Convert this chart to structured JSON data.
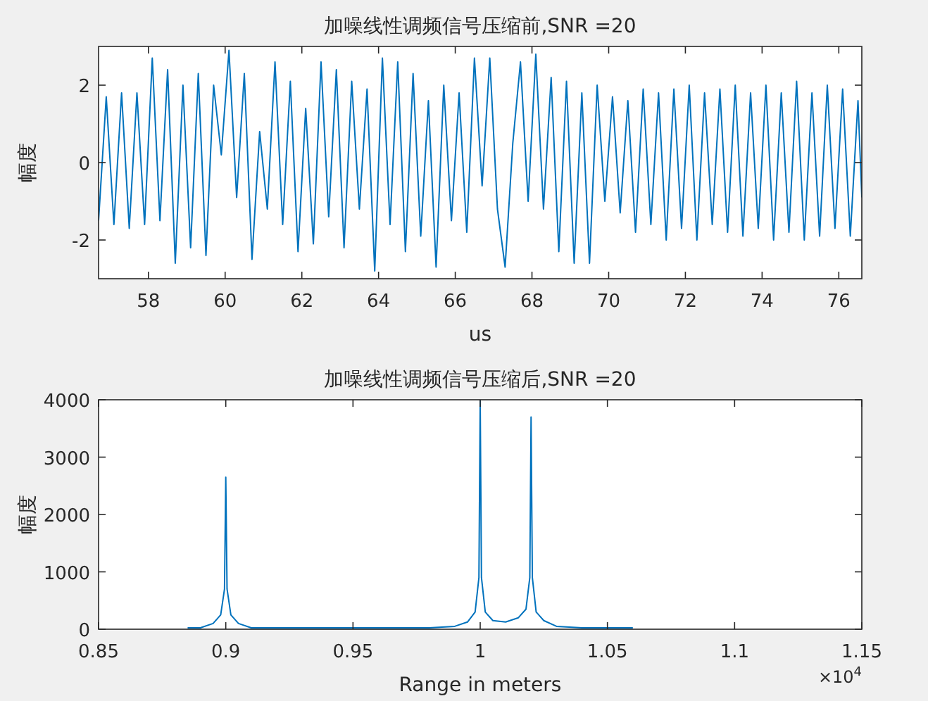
{
  "chart_data": [
    {
      "type": "line",
      "title": "加噪线性调频信号压缩前,SNR =20",
      "xlabel": "us",
      "ylabel": "幅度",
      "xlim": [
        56.7,
        76.6
      ],
      "xticks": [
        58,
        60,
        62,
        64,
        66,
        68,
        70,
        72,
        74,
        76
      ],
      "ylim": [
        -3,
        3
      ],
      "yticks": [
        -2,
        0,
        2
      ],
      "series": [
        {
          "color": "#0072bd",
          "x": [
            56.7,
            56.9,
            57.1,
            57.3,
            57.5,
            57.7,
            57.9,
            58.1,
            58.3,
            58.5,
            58.7,
            58.9,
            59.1,
            59.3,
            59.5,
            59.7,
            59.9,
            60.1,
            60.3,
            60.5,
            60.7,
            60.9,
            61.1,
            61.3,
            61.5,
            61.7,
            61.9,
            62.1,
            62.3,
            62.5,
            62.7,
            62.9,
            63.1,
            63.3,
            63.5,
            63.7,
            63.9,
            64.1,
            64.3,
            64.5,
            64.7,
            64.9,
            65.1,
            65.3,
            65.5,
            65.7,
            65.9,
            66.1,
            66.3,
            66.5,
            66.7,
            66.9,
            67.1,
            67.3,
            67.5,
            67.7,
            67.9,
            68.1,
            68.3,
            68.5,
            68.7,
            68.9,
            69.1,
            69.3,
            69.5,
            69.7,
            69.9,
            70.1,
            70.3,
            70.5,
            70.7,
            70.9,
            71.1,
            71.3,
            71.5,
            71.7,
            71.9,
            72.1,
            72.3,
            72.5,
            72.7,
            72.9,
            73.1,
            73.3,
            73.5,
            73.7,
            73.9,
            74.1,
            74.3,
            74.5,
            74.7,
            74.9,
            75.1,
            75.3,
            75.5,
            75.7,
            75.9,
            76.1,
            76.3,
            76.5,
            76.6
          ],
          "values": [
            -1.5,
            1.7,
            -1.6,
            1.8,
            -1.7,
            1.8,
            -1.6,
            2.7,
            -1.5,
            2.4,
            -2.6,
            2.0,
            -2.2,
            2.3,
            -2.4,
            2.0,
            0.2,
            2.9,
            -0.9,
            2.3,
            -2.5,
            0.8,
            -1.2,
            2.6,
            -1.6,
            2.1,
            -2.3,
            1.4,
            -2.1,
            2.6,
            -1.4,
            2.4,
            -2.2,
            2.1,
            -1.2,
            1.9,
            -2.8,
            2.7,
            -1.6,
            2.6,
            -2.3,
            2.3,
            -1.9,
            1.6,
            -2.7,
            2.0,
            -1.5,
            1.8,
            -1.8,
            2.7,
            -0.6,
            2.7,
            -1.2,
            -2.7,
            0.5,
            2.6,
            -1.0,
            2.8,
            -1.2,
            2.2,
            -2.3,
            2.1,
            -2.6,
            1.8,
            -2.6,
            2.0,
            -1.0,
            1.7,
            -1.3,
            1.6,
            -1.8,
            1.9,
            -1.6,
            1.8,
            -2.0,
            1.9,
            -1.7,
            2.0,
            -2.0,
            1.8,
            -1.6,
            1.9,
            -1.8,
            2.0,
            -1.9,
            1.8,
            -1.7,
            2.0,
            -2.0,
            1.8,
            -1.8,
            2.1,
            -2.0,
            1.8,
            -1.9,
            2.0,
            -1.7,
            1.9,
            -1.9,
            1.6,
            -0.9
          ]
        }
      ]
    },
    {
      "type": "line",
      "title": "加噪线性调频信号压缩后,SNR =20",
      "xlabel": "Range in meters",
      "ylabel": "幅度",
      "xlim": [
        0.85,
        1.15
      ],
      "xticks": [
        0.85,
        0.9,
        0.95,
        1,
        1.05,
        1.1,
        1.15
      ],
      "ylim": [
        0,
        4000
      ],
      "yticks": [
        0,
        1000,
        2000,
        3000,
        4000
      ],
      "annotations": [
        "×10$^{4}$"
      ],
      "series": [
        {
          "color": "#0072bd",
          "x": [
            0.885,
            0.89,
            0.895,
            0.898,
            0.8995,
            0.9,
            0.9005,
            0.902,
            0.905,
            0.91,
            0.95,
            0.98,
            0.99,
            0.995,
            0.998,
            0.9995,
            1,
            1.0005,
            1.002,
            1.005,
            1.01,
            1.015,
            1.018,
            1.0195,
            1.02,
            1.0205,
            1.022,
            1.025,
            1.03,
            1.04,
            1.06
          ],
          "values": [
            25,
            25,
            100,
            250,
            700,
            2650,
            700,
            250,
            100,
            25,
            25,
            25,
            50,
            125,
            300,
            900,
            3980,
            900,
            300,
            150,
            125,
            200,
            350,
            900,
            3700,
            900,
            300,
            150,
            50,
            25,
            25
          ]
        }
      ]
    }
  ]
}
